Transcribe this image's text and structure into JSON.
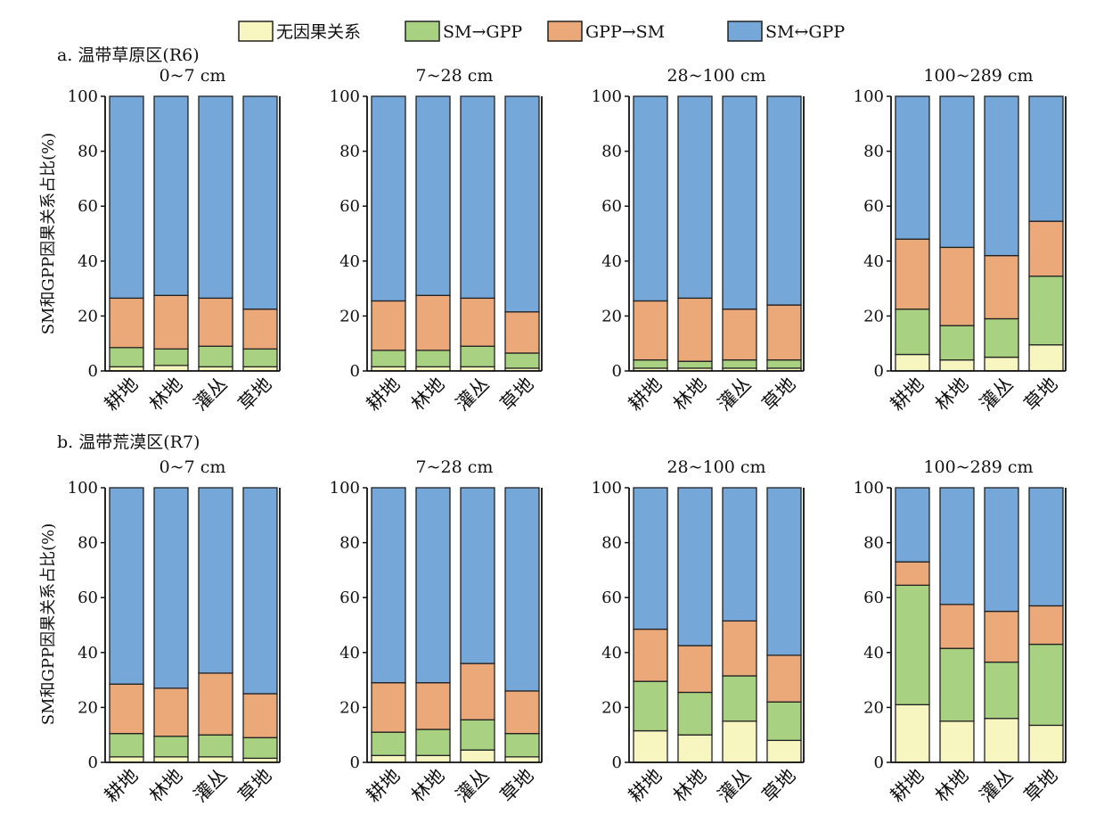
{
  "legend": [
    {
      "label": "无因果关系",
      "color": "#f7f6c0"
    },
    {
      "label": "SM→GPP",
      "color": "#a8d181"
    },
    {
      "label": "GPP→SM",
      "color": "#eba97a"
    },
    {
      "label": "SM↔GPP",
      "color": "#76a7d9"
    }
  ],
  "ylabel": "SM和GPP因果关系占比(%)",
  "chart_data": [
    {
      "type": "bar",
      "stacked": true,
      "panel": "a. 温带草原区(R6)",
      "title": "0~7 cm",
      "categories": [
        "耕地",
        "林地",
        "灌丛",
        "草地"
      ],
      "ylim": [
        0,
        100
      ],
      "yticks": [
        0,
        20,
        40,
        60,
        80,
        100
      ],
      "series": [
        {
          "name": "无因果关系",
          "values": [
            1.5,
            2,
            1.5,
            1.5
          ]
        },
        {
          "name": "SM→GPP",
          "values": [
            7,
            6,
            7.5,
            6.5
          ]
        },
        {
          "name": "GPP→SM",
          "values": [
            18,
            19.5,
            17.5,
            14.5
          ]
        },
        {
          "name": "SM↔GPP",
          "values": [
            73.5,
            72.5,
            73.5,
            77.5
          ]
        }
      ]
    },
    {
      "type": "bar",
      "stacked": true,
      "panel": "a. 温带草原区(R6)",
      "title": "7~28 cm",
      "categories": [
        "耕地",
        "林地",
        "灌丛",
        "草地"
      ],
      "ylim": [
        0,
        100
      ],
      "yticks": [
        0,
        20,
        40,
        60,
        80,
        100
      ],
      "series": [
        {
          "name": "无因果关系",
          "values": [
            1.5,
            1.5,
            1.5,
            1
          ]
        },
        {
          "name": "SM→GPP",
          "values": [
            6,
            6,
            7.5,
            5.5
          ]
        },
        {
          "name": "GPP→SM",
          "values": [
            18,
            20,
            17.5,
            15
          ]
        },
        {
          "name": "SM↔GPP",
          "values": [
            74.5,
            72.5,
            73.5,
            78.5
          ]
        }
      ]
    },
    {
      "type": "bar",
      "stacked": true,
      "panel": "a. 温带草原区(R6)",
      "title": "28~100 cm",
      "categories": [
        "耕地",
        "林地",
        "灌丛",
        "草地"
      ],
      "ylim": [
        0,
        100
      ],
      "yticks": [
        0,
        20,
        40,
        60,
        80,
        100
      ],
      "series": [
        {
          "name": "无因果关系",
          "values": [
            1,
            1,
            1,
            1
          ]
        },
        {
          "name": "SM→GPP",
          "values": [
            3,
            2.5,
            3,
            3
          ]
        },
        {
          "name": "GPP→SM",
          "values": [
            21.5,
            23,
            18.5,
            20
          ]
        },
        {
          "name": "SM↔GPP",
          "values": [
            74.5,
            73.5,
            77.5,
            76
          ]
        }
      ]
    },
    {
      "type": "bar",
      "stacked": true,
      "panel": "a. 温带草原区(R6)",
      "title": "100~289 cm",
      "categories": [
        "耕地",
        "林地",
        "灌丛",
        "草地"
      ],
      "ylim": [
        0,
        100
      ],
      "yticks": [
        0,
        20,
        40,
        60,
        80,
        100
      ],
      "series": [
        {
          "name": "无因果关系",
          "values": [
            6,
            4,
            5,
            9.5
          ]
        },
        {
          "name": "SM→GPP",
          "values": [
            16.5,
            12.5,
            14,
            25
          ]
        },
        {
          "name": "GPP→SM",
          "values": [
            25.5,
            28.5,
            23,
            20
          ]
        },
        {
          "name": "SM↔GPP",
          "values": [
            52,
            55,
            58,
            45.5
          ]
        }
      ]
    },
    {
      "type": "bar",
      "stacked": true,
      "panel": "b. 温带荒漠区(R7)",
      "title": "0~7 cm",
      "categories": [
        "耕地",
        "林地",
        "灌丛",
        "草地"
      ],
      "ylim": [
        0,
        100
      ],
      "yticks": [
        0,
        20,
        40,
        60,
        80,
        100
      ],
      "series": [
        {
          "name": "无因果关系",
          "values": [
            2,
            2,
            2,
            1.5
          ]
        },
        {
          "name": "SM→GPP",
          "values": [
            8.5,
            7.5,
            8,
            7.5
          ]
        },
        {
          "name": "GPP→SM",
          "values": [
            18,
            17.5,
            22.5,
            16
          ]
        },
        {
          "name": "SM↔GPP",
          "values": [
            71.5,
            73,
            67.5,
            75
          ]
        }
      ]
    },
    {
      "type": "bar",
      "stacked": true,
      "panel": "b. 温带荒漠区(R7)",
      "title": "7~28 cm",
      "categories": [
        "耕地",
        "林地",
        "灌丛",
        "草地"
      ],
      "ylim": [
        0,
        100
      ],
      "yticks": [
        0,
        20,
        40,
        60,
        80,
        100
      ],
      "series": [
        {
          "name": "无因果关系",
          "values": [
            2.5,
            2.5,
            4.5,
            2
          ]
        },
        {
          "name": "SM→GPP",
          "values": [
            8.5,
            9.5,
            11,
            8.5
          ]
        },
        {
          "name": "GPP→SM",
          "values": [
            18,
            17,
            20.5,
            15.5
          ]
        },
        {
          "name": "SM↔GPP",
          "values": [
            71,
            71,
            64,
            74
          ]
        }
      ]
    },
    {
      "type": "bar",
      "stacked": true,
      "panel": "b. 温带荒漠区(R7)",
      "title": "28~100 cm",
      "categories": [
        "耕地",
        "林地",
        "灌丛",
        "草地"
      ],
      "ylim": [
        0,
        100
      ],
      "yticks": [
        0,
        20,
        40,
        60,
        80,
        100
      ],
      "series": [
        {
          "name": "无因果关系",
          "values": [
            11.5,
            10,
            15,
            8
          ]
        },
        {
          "name": "SM→GPP",
          "values": [
            18,
            15.5,
            16.5,
            14
          ]
        },
        {
          "name": "GPP→SM",
          "values": [
            19,
            17,
            20,
            17
          ]
        },
        {
          "name": "SM↔GPP",
          "values": [
            51.5,
            57.5,
            48.5,
            61
          ]
        }
      ]
    },
    {
      "type": "bar",
      "stacked": true,
      "panel": "b. 温带荒漠区(R7)",
      "title": "100~289 cm",
      "categories": [
        "耕地",
        "林地",
        "灌丛",
        "草地"
      ],
      "ylim": [
        0,
        100
      ],
      "yticks": [
        0,
        20,
        40,
        60,
        80,
        100
      ],
      "series": [
        {
          "name": "无因果关系",
          "values": [
            21,
            15,
            16,
            13.5
          ]
        },
        {
          "name": "SM→GPP",
          "values": [
            43.5,
            26.5,
            20.5,
            29.5
          ]
        },
        {
          "name": "GPP→SM",
          "values": [
            8.5,
            16,
            18.5,
            14
          ]
        },
        {
          "name": "SM↔GPP",
          "values": [
            27,
            42.5,
            45,
            43
          ]
        }
      ]
    }
  ]
}
